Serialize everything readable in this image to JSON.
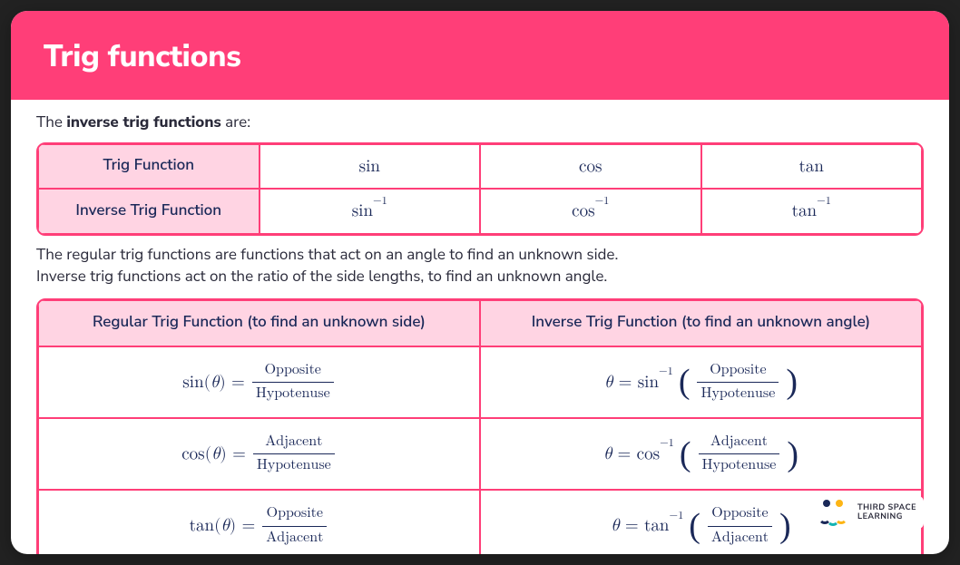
{
  "header": {
    "title": "Trig functions"
  },
  "intro_prefix": "The ",
  "intro_bold": "inverse trig functions",
  "intro_suffix": " are:",
  "table1": {
    "row1_label": "Trig Function",
    "row2_label": "Inverse Trig Function",
    "cols": {
      "sin": "sin",
      "cos": "cos",
      "tan": "tan"
    },
    "inverse_exp": "−1",
    "header_bg": "#ffd4e3",
    "border_color": "#ff3e78",
    "text_color": "#1a2858"
  },
  "mid_text_line1": "The regular trig functions are functions that act on an angle to find an unknown side.",
  "mid_text_line2": "Inverse trig functions act on the ratio of the side lengths, to find an unknown angle.",
  "table2": {
    "header_left": "Regular Trig Function (to find an unknown side)",
    "header_right": "Inverse Trig Function (to find an unknown angle)",
    "rows": [
      {
        "func": "sin",
        "num": "Opposite",
        "den": "Hypotenuse"
      },
      {
        "func": "cos",
        "num": "Adjacent",
        "den": "Hypotenuse"
      },
      {
        "func": "tan",
        "num": "Opposite",
        "den": "Adjacent"
      }
    ],
    "theta": "θ",
    "eq": "=",
    "inverse_exp": "−1"
  },
  "brand": {
    "line1": "THIRD SPACE",
    "line2": "LEARNING"
  },
  "colors": {
    "accent": "#ff3e78",
    "header_pink": "#ffd4e3",
    "math_text": "#1a2858",
    "body_text": "#2a2a3a",
    "card_bg": "#ffffff"
  }
}
